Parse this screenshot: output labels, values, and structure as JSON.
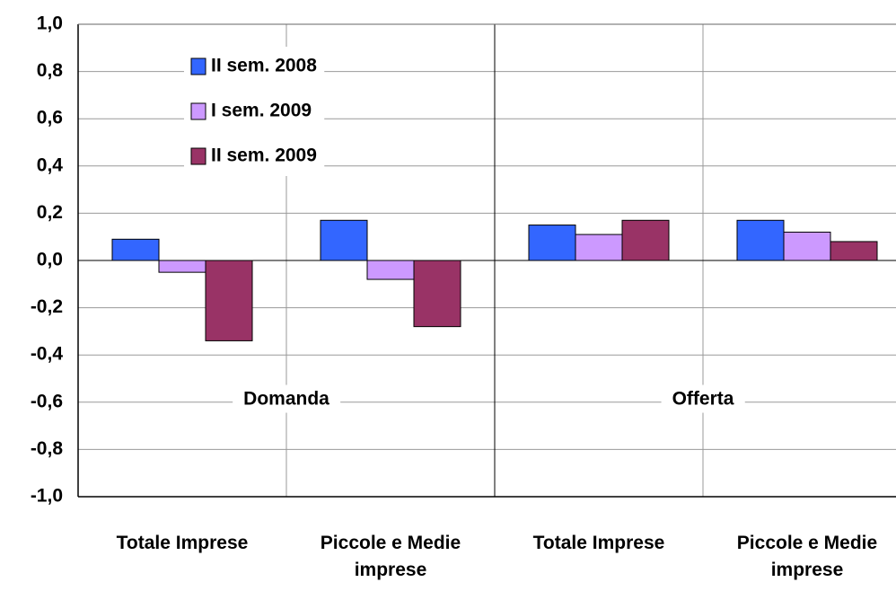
{
  "chart_data": {
    "type": "bar",
    "categories": [
      "Totale Imprese",
      "Piccole e Medie imprese",
      "Totale Imprese",
      "Piccole e Medie imprese"
    ],
    "series": [
      {
        "name": "II sem. 2008",
        "color": "#3366ff",
        "values": [
          0.09,
          0.17,
          0.15,
          0.17
        ]
      },
      {
        "name": "I  sem. 2009",
        "color": "#cc99ff",
        "values": [
          -0.05,
          -0.08,
          0.11,
          0.12
        ]
      },
      {
        "name": "II sem. 2009",
        "color": "#993366",
        "values": [
          -0.34,
          -0.28,
          0.17,
          0.08
        ]
      }
    ],
    "annotations": [
      "Domanda",
      "Offerta"
    ],
    "ylim": [
      -1.0,
      1.0
    ],
    "yticks": [
      {
        "value": -1.0,
        "label": "-1,0"
      },
      {
        "value": -0.8,
        "label": "-0,8"
      },
      {
        "value": -0.6,
        "label": "-0,6"
      },
      {
        "value": -0.4,
        "label": "-0,4"
      },
      {
        "value": -0.2,
        "label": "-0,2"
      },
      {
        "value": 0.0,
        "label": "0,0"
      },
      {
        "value": 0.2,
        "label": "0,2"
      },
      {
        "value": 0.4,
        "label": "0,4"
      },
      {
        "value": 0.6,
        "label": "0,6"
      },
      {
        "value": 0.8,
        "label": "0,8"
      },
      {
        "value": 1.0,
        "label": "1,0"
      }
    ],
    "grid": true,
    "legend": "upper left"
  }
}
